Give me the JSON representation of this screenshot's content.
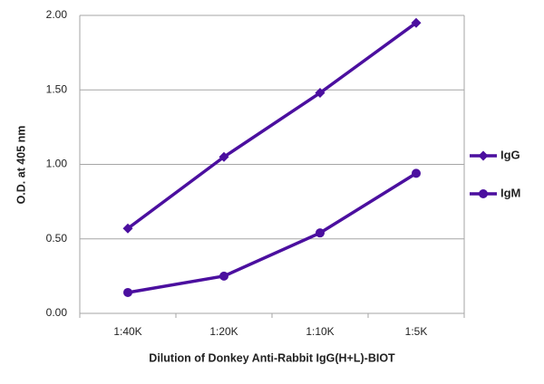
{
  "chart_data": {
    "type": "line",
    "x_label": "Dilution of Donkey Anti-Rabbit IgG(H+L)-BIOT",
    "y_label": "O.D. at 405 nm",
    "categories": [
      "1:40K",
      "1:20K",
      "1:10K",
      "1:5K"
    ],
    "series": [
      {
        "name": "IgG",
        "color": "#4b0f9f",
        "marker": "diamond",
        "values": [
          0.57,
          1.05,
          1.48,
          1.95
        ]
      },
      {
        "name": "IgM",
        "color": "#4b0f9f",
        "marker": "circle",
        "values": [
          0.14,
          0.25,
          0.54,
          0.94
        ]
      }
    ],
    "ylim": [
      0,
      2
    ],
    "yticks": [
      {
        "value": 0,
        "label": "0.00"
      },
      {
        "value": 0.5,
        "label": "0.50"
      },
      {
        "value": 1,
        "label": "1.00"
      },
      {
        "value": 1.5,
        "label": "1.50"
      },
      {
        "value": 2,
        "label": "2.00"
      }
    ],
    "grid": true,
    "legend": "right"
  }
}
